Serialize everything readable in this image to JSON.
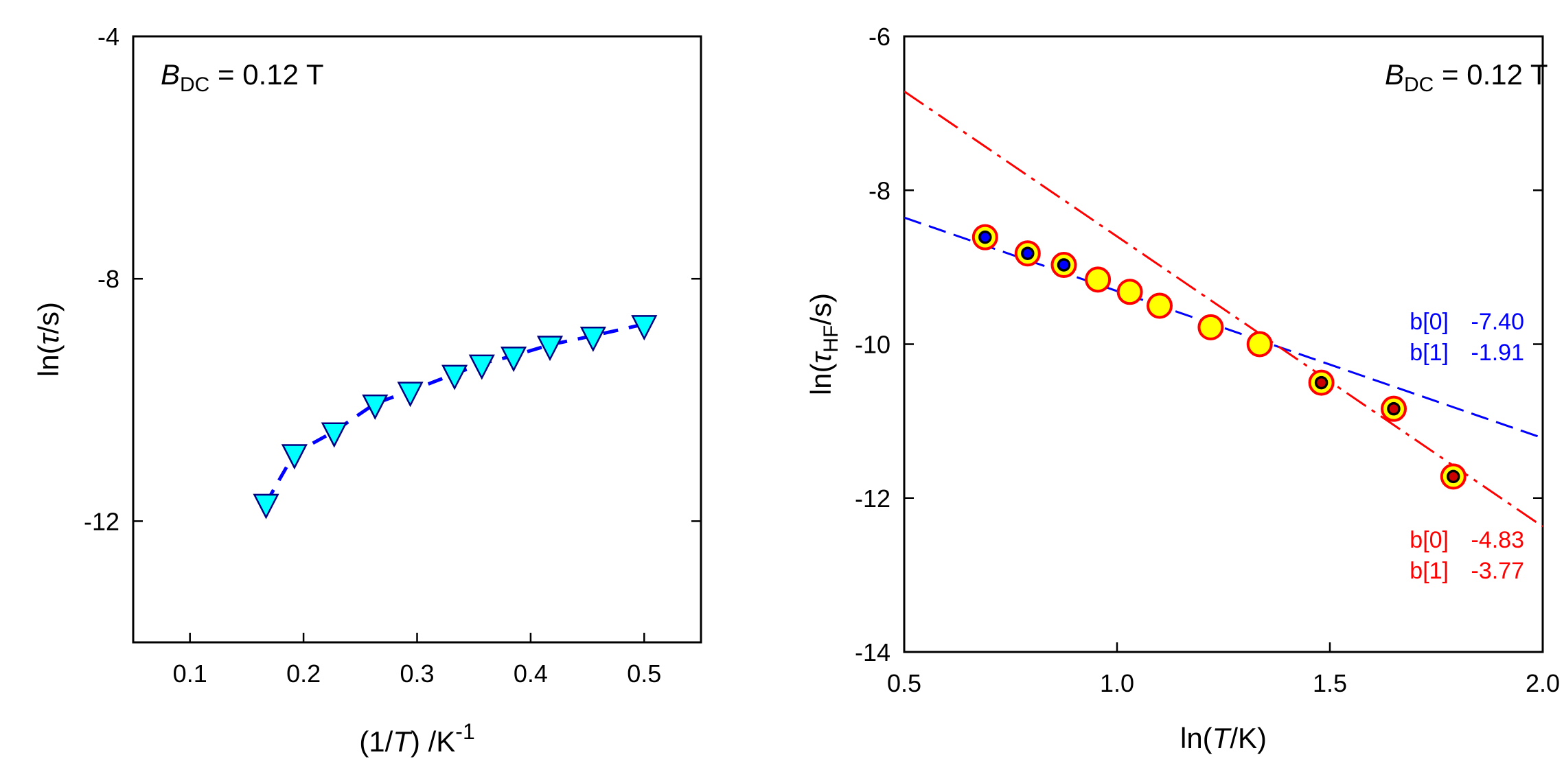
{
  "chart_data": [
    {
      "type": "scatter",
      "annotation": {
        "symbol": "B",
        "subscript": "DC",
        "rest": " = 0.12 T"
      },
      "xlabel": {
        "pre": "(1/",
        "italic": "T",
        "post": ") /K",
        "sup": "-1"
      },
      "ylabel": {
        "pre": "ln(",
        "italic": "τ",
        "post": "/s)"
      },
      "xlim": [
        0.05,
        0.55
      ],
      "ylim": [
        -14,
        -4
      ],
      "xticks": [
        0.1,
        0.2,
        0.3,
        0.4,
        0.5
      ],
      "xtick_labels": [
        "0.1",
        "0.2",
        "0.3",
        "0.4",
        "0.5"
      ],
      "yticks": [
        -12,
        -8,
        -4
      ],
      "ytick_labels": [
        "-12",
        "-8",
        "-4"
      ],
      "series": [
        {
          "name": "data",
          "marker": "triangle-down",
          "color": "#00ffff",
          "edge": "#000080",
          "line": "dashed",
          "line_color": "#0000ff",
          "x": [
            0.167,
            0.192,
            0.227,
            0.263,
            0.294,
            0.333,
            0.357,
            0.385,
            0.417,
            0.455,
            0.5
          ],
          "y": [
            -11.7,
            -10.88,
            -10.52,
            -10.06,
            -9.85,
            -9.57,
            -9.4,
            -9.27,
            -9.09,
            -8.94,
            -8.75
          ]
        }
      ]
    },
    {
      "type": "scatter",
      "annotation": {
        "symbol": "B",
        "subscript": "DC",
        "rest": " = 0.12 T"
      },
      "xlabel": {
        "pre": "ln(",
        "italic": "T",
        "post": "/K)"
      },
      "ylabel": {
        "pre": "ln(",
        "italic": "τ",
        "sub": "HF",
        "post": "/s)"
      },
      "xlim": [
        0.5,
        2.0
      ],
      "ylim": [
        -14,
        -6
      ],
      "xticks": [
        0.5,
        1.0,
        1.5,
        2.0
      ],
      "xtick_labels": [
        "0.5",
        "1.0",
        "1.5",
        "2.0"
      ],
      "yticks": [
        -14,
        -12,
        -10,
        -8,
        -6
      ],
      "ytick_labels": [
        "-14",
        "-12",
        "-10",
        "-8",
        "-6"
      ],
      "series": [
        {
          "name": "data",
          "marker": "circle",
          "color": "#ffff00",
          "edge": "#ff0000",
          "x": [
            0.69,
            0.79,
            0.875,
            0.955,
            1.03,
            1.1,
            1.22,
            1.335,
            1.48,
            1.65,
            1.79
          ],
          "y": [
            -8.61,
            -8.82,
            -8.97,
            -9.16,
            -9.32,
            -9.5,
            -9.78,
            -10.0,
            -10.5,
            -10.84,
            -11.72
          ],
          "inner": [
            "#0000ff",
            "#0000ff",
            "#0000ff",
            "",
            "",
            "",
            "",
            "",
            "#cc0000",
            "#cc0000",
            "#cc0000"
          ]
        }
      ],
      "fits": [
        {
          "name": "low-T fit",
          "color": "#0000ff",
          "style": "dashed",
          "b0": -7.4,
          "b1": -1.91,
          "labels": [
            {
              "k": "b[0]",
              "v": "-7.40"
            },
            {
              "k": "b[1]",
              "v": "-1.91"
            }
          ]
        },
        {
          "name": "high-T fit",
          "color": "#ff0000",
          "style": "dash-dot",
          "b0": -4.83,
          "b1": -3.77,
          "labels": [
            {
              "k": "b[0]",
              "v": "-4.83"
            },
            {
              "k": "b[1]",
              "v": "-3.77"
            }
          ]
        }
      ]
    }
  ]
}
